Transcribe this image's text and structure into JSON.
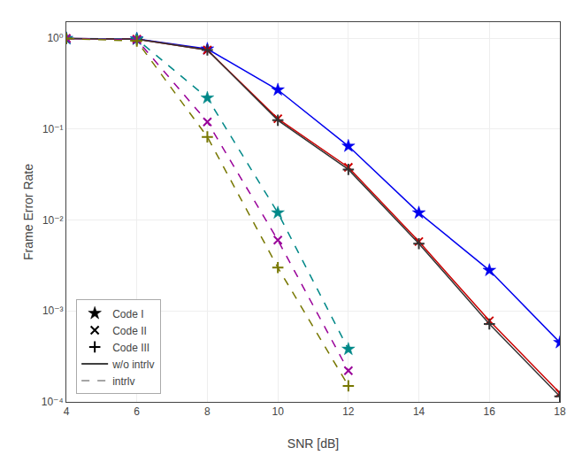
{
  "chart_data": {
    "type": "line",
    "log": "y",
    "grid": true,
    "legend": "lower left",
    "x_label": "SNR [dB]",
    "y_label": "Frame Error Rate",
    "xlim": [
      4,
      18
    ],
    "xticks": [
      4,
      6,
      8,
      10,
      12,
      14,
      16,
      18
    ],
    "ylim": [
      0.0001,
      1.5
    ],
    "yticks": [
      {
        "value": 0.0001,
        "label": "10⁻⁴"
      },
      {
        "value": 0.001,
        "label": "10⁻³"
      },
      {
        "value": 0.01,
        "label": "10⁻²"
      },
      {
        "value": 0.1,
        "label": "10⁻¹"
      },
      {
        "value": 1,
        "label": "10⁰"
      }
    ],
    "series": [
      {
        "x": [
          4,
          6,
          8,
          10,
          12,
          14,
          16,
          18
        ],
        "values": [
          0.99,
          0.98,
          0.76,
          0.27,
          0.065,
          0.012,
          0.0028,
          0.00045
        ],
        "color": "#0000EE",
        "marker": "star",
        "line_style": "solid"
      },
      {
        "x": [
          4,
          6,
          8,
          10,
          12,
          14,
          16,
          18
        ],
        "values": [
          0.99,
          0.975,
          0.74,
          0.13,
          0.038,
          0.0058,
          0.00078,
          0.000125
        ],
        "color": "#CC0000",
        "marker": "x",
        "line_style": "solid"
      },
      {
        "x": [
          4,
          6,
          8,
          10,
          12,
          14,
          16,
          18
        ],
        "values": [
          0.99,
          0.975,
          0.74,
          0.125,
          0.036,
          0.0055,
          0.00072,
          0.000115
        ],
        "color": "#333333",
        "marker": "plus",
        "line_style": "solid"
      },
      {
        "x": [
          4,
          6,
          8,
          10,
          12
        ],
        "values": [
          0.99,
          0.975,
          0.22,
          0.012,
          0.00038
        ],
        "color": "#008888",
        "marker": "star",
        "line_style": "dashed"
      },
      {
        "x": [
          4,
          6,
          8,
          10,
          12
        ],
        "values": [
          0.99,
          0.96,
          0.12,
          0.006,
          0.00022
        ],
        "color": "#990099",
        "marker": "x",
        "line_style": "dashed"
      },
      {
        "x": [
          4,
          6,
          8,
          10,
          12
        ],
        "values": [
          0.99,
          0.93,
          0.082,
          0.003,
          0.00015
        ],
        "color": "#777700",
        "marker": "plus",
        "line_style": "dashed"
      }
    ],
    "legend_entries": [
      {
        "name": "Code I",
        "marker": "star",
        "color": "#000000"
      },
      {
        "name": "Code II",
        "marker": "x",
        "color": "#000000"
      },
      {
        "name": "Code III",
        "marker": "plus",
        "color": "#000000"
      },
      {
        "name": "w/o intrlv",
        "line_style": "solid",
        "color": "#000000"
      },
      {
        "name": "intrlv",
        "line_style": "dashed",
        "color": "#888888"
      }
    ]
  }
}
